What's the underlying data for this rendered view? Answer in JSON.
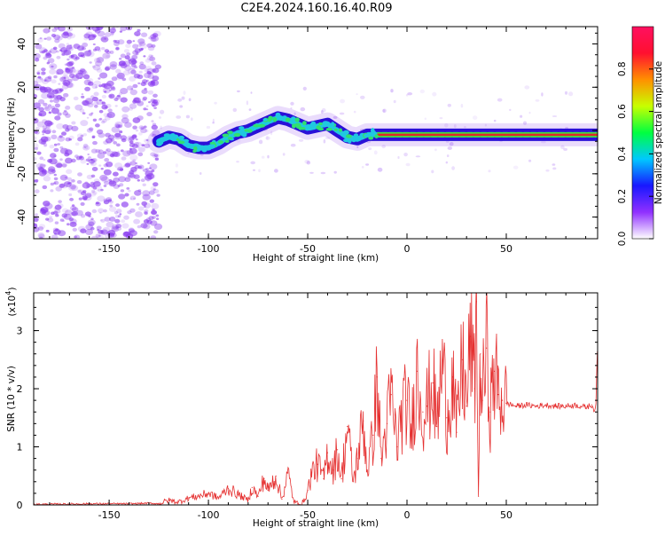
{
  "title": "C2E4.2024.160.16.40.R09",
  "colors": {
    "snr_line": "#e53030",
    "speckle": "#8a3cf0",
    "track_core": "#e02828",
    "track_mid": "#20c8e0",
    "track_outer": "#2a10d8"
  },
  "chart_data": [
    {
      "type": "heatmap",
      "title": "C2E4.2024.160.16.40.R09",
      "xlabel": "Height of straight line (km)",
      "ylabel": "Frequency (Hz)",
      "xlim": [
        -188,
        96
      ],
      "ylim": [
        -50,
        48
      ],
      "x_ticks": [
        "-150",
        "-100",
        "-50",
        "0",
        "50"
      ],
      "y_ticks": [
        "-40",
        "-20",
        "0",
        "20",
        "40"
      ],
      "colorbar": {
        "label": "Normalized spectral amplitude",
        "range": [
          0,
          1
        ],
        "ticks": [
          "0.0",
          "0.2",
          "0.4",
          "0.6",
          "0.8"
        ],
        "colormap": [
          "#ffffff",
          "#9030ff",
          "#1818ff",
          "#00c8ff",
          "#00ff40",
          "#c8ff00",
          "#ff9000",
          "#ff1030",
          "#ff1060"
        ]
      },
      "noise_region_x": [
        -188,
        -125
      ],
      "ridge": {
        "x": [
          -125,
          -120,
          -115,
          -110,
          -105,
          -100,
          -95,
          -90,
          -85,
          -80,
          -75,
          -70,
          -65,
          -60,
          -55,
          -50,
          -45,
          -40,
          -35,
          -30,
          -25,
          -20,
          -15,
          -10,
          -5,
          0,
          10,
          20,
          30,
          40,
          50,
          60,
          70,
          80,
          90,
          96
        ],
        "y": [
          -5,
          -3,
          -4,
          -7,
          -8,
          -8,
          -6,
          -3,
          -1,
          0,
          2,
          4,
          6,
          5,
          3,
          1,
          2,
          3,
          0,
          -3,
          -4,
          -2,
          -2,
          -2,
          -2,
          -2,
          -2,
          -2,
          -2,
          -2,
          -2,
          -2,
          -2,
          -2,
          -2,
          -2
        ]
      }
    },
    {
      "type": "line",
      "xlabel": "Height of straight line (km)",
      "ylabel": "SNR (10 * v/v)",
      "y_multiplier": "(x10",
      "y_multiplier_exp": "4",
      "y_multiplier_close": ")",
      "xlim": [
        -188,
        96
      ],
      "ylim": [
        0,
        3.65
      ],
      "x_ticks": [
        "-150",
        "-100",
        "-50",
        "0",
        "50"
      ],
      "y_ticks": [
        "0",
        "1",
        "2",
        "3"
      ],
      "series": [
        {
          "x": [
            -188,
            -160,
            -140,
            -130,
            -125,
            -120,
            -115,
            -110,
            -105,
            -100,
            -95,
            -90,
            -85,
            -80,
            -78,
            -75,
            -72,
            -70,
            -66,
            -63,
            -60,
            -57,
            -55,
            -52,
            -50,
            -48,
            -45,
            -42,
            -40,
            -37,
            -35,
            -33,
            -30,
            -27,
            -25,
            -22,
            -20,
            -17,
            -15,
            -13,
            -10,
            -8,
            -5,
            -3,
            0,
            2,
            5,
            8,
            10,
            13,
            15,
            18,
            20,
            23,
            25,
            28,
            30,
            32,
            34,
            35,
            36,
            37,
            38,
            40,
            42,
            44,
            46,
            48,
            50,
            55,
            60,
            65,
            70,
            75,
            80,
            85,
            90,
            93,
            95,
            96
          ],
          "y": [
            0.01,
            0.02,
            0.02,
            0.03,
            0.02,
            0.08,
            0.05,
            0.12,
            0.15,
            0.2,
            0.12,
            0.28,
            0.18,
            0.08,
            0.3,
            0.15,
            0.45,
            0.25,
            0.5,
            0.1,
            0.55,
            0.06,
            0.02,
            0.05,
            0.25,
            0.55,
            0.7,
            0.45,
            0.9,
            0.6,
            0.95,
            0.45,
            1.35,
            0.4,
            0.8,
            1.45,
            0.6,
            1.2,
            2.2,
            0.8,
            1.4,
            1.9,
            1.0,
            1.5,
            1.8,
            1.2,
            2.3,
            1.6,
            1.7,
            2.1,
            1.35,
            2.5,
            1.5,
            2.2,
            1.25,
            2.5,
            1.7,
            2.9,
            2.0,
            3.5,
            0.15,
            2.6,
            1.8,
            2.7,
            1.6,
            2.3,
            1.9,
            1.8,
            1.75,
            1.7,
            1.72,
            1.7,
            1.72,
            1.7,
            1.7,
            1.72,
            1.68,
            1.72,
            1.6,
            2.8
          ]
        }
      ]
    }
  ]
}
